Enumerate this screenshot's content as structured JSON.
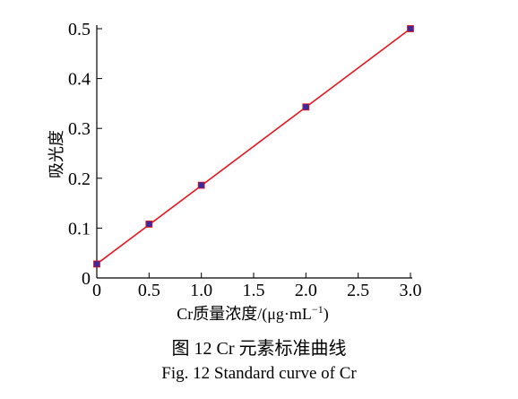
{
  "chart_data": {
    "type": "scatter",
    "series": [
      {
        "x": [
          0,
          0.5,
          1.0,
          2.0,
          3.0
        ],
        "y": [
          0.028,
          0.108,
          0.186,
          0.343,
          0.5
        ]
      }
    ],
    "fit_line": {
      "x": [
        0,
        3.0
      ],
      "y": [
        0.028,
        0.5
      ]
    },
    "xlim": [
      0,
      3.0
    ],
    "ylim": [
      0,
      0.5
    ],
    "xticks": [
      "0",
      "0.5",
      "1.0",
      "1.5",
      "2.0",
      "2.5",
      "3.0"
    ],
    "yticks": [
      "0",
      "0.1",
      "0.2",
      "0.3",
      "0.4",
      "0.5"
    ],
    "xlabel": "Cr质量浓度/(μg·mL",
    "xlabel_sup": "−1",
    "xlabel_close": ")",
    "ylabel": "吸光度",
    "grid": false,
    "colors": {
      "line": "#e8141e",
      "marker": "#3b2a9a",
      "axis": "#000000"
    }
  },
  "caption": {
    "cn": "图 12    Cr 元素标准曲线",
    "en": "Fig. 12    Standard curve of Cr"
  }
}
